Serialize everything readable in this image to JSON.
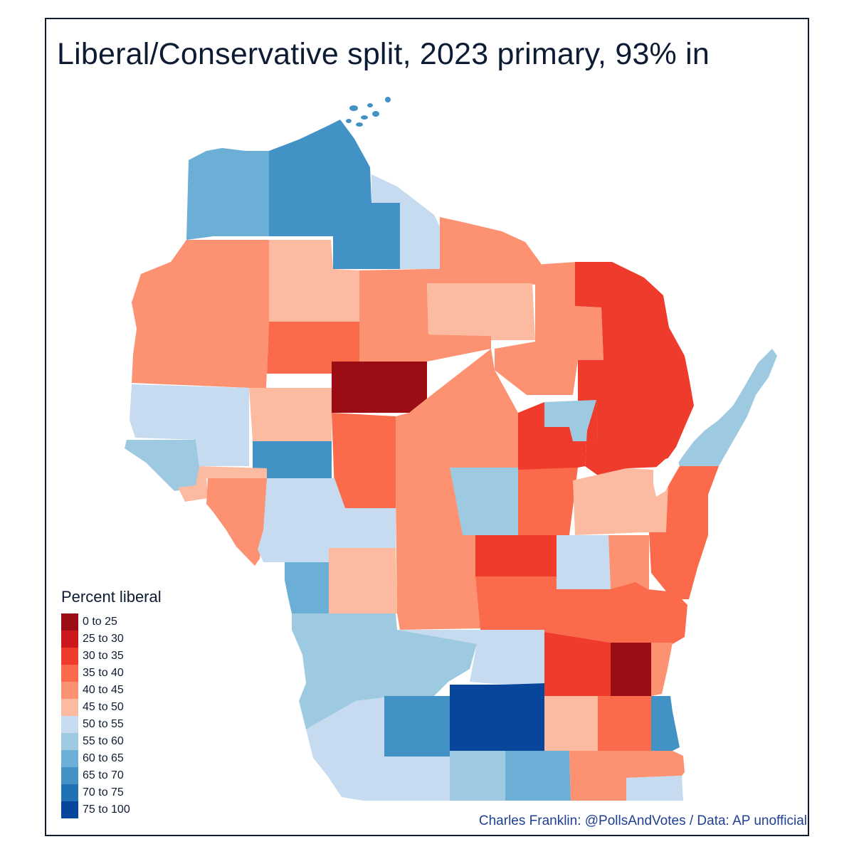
{
  "title": "Liberal/Conservative split, 2023 primary, 93% in",
  "legend": {
    "title": "Percent liberal",
    "bins": [
      {
        "label": "0 to 25",
        "color": "#9b0d14"
      },
      {
        "label": "25 to 30",
        "color": "#cb181d"
      },
      {
        "label": "30 to 35",
        "color": "#ef3b2c"
      },
      {
        "label": "35 to 40",
        "color": "#fb6a4a"
      },
      {
        "label": "40 to 45",
        "color": "#fc9272"
      },
      {
        "label": "45 to 50",
        "color": "#fcbba1"
      },
      {
        "label": "50 to 55",
        "color": "#c6dbef"
      },
      {
        "label": "55 to 60",
        "color": "#9ecae1"
      },
      {
        "label": "60 to 65",
        "color": "#6baed6"
      },
      {
        "label": "65 to 70",
        "color": "#4292c6"
      },
      {
        "label": "70 to 75",
        "color": "#2171b5"
      },
      {
        "label": "75 to 100",
        "color": "#08469b"
      }
    ]
  },
  "credit": "Charles Franklin: @PollsAndVotes / Data: AP unofficial"
}
